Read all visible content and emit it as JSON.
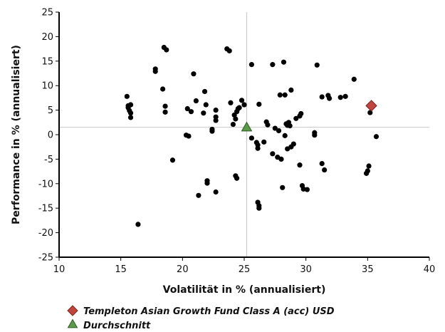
{
  "chart_data": {
    "type": "scatter",
    "xlabel": "Volatilität in % (annualisiert)",
    "ylabel": "Performance in % (annualisiert)",
    "xlim": [
      10,
      40
    ],
    "ylim": [
      -25,
      25
    ],
    "xticks": [
      10,
      15,
      20,
      25,
      30,
      35,
      40
    ],
    "yticks": [
      -25,
      -20,
      -15,
      -10,
      -5,
      0,
      5,
      10,
      15,
      20,
      25
    ],
    "grid": false,
    "legend_position": "bottom-left",
    "reference_lines": {
      "x": 25.2,
      "y": 1.5
    },
    "series": [
      {
        "name": "",
        "marker": "circle",
        "color": "#000000",
        "points": [
          [
            15.5,
            7.8
          ],
          [
            15.6,
            5.9
          ],
          [
            15.6,
            5.5
          ],
          [
            15.7,
            4.9
          ],
          [
            15.8,
            6.1
          ],
          [
            15.8,
            4.4
          ],
          [
            15.8,
            3.5
          ],
          [
            16.4,
            -18.3
          ],
          [
            17.8,
            13.4
          ],
          [
            17.8,
            12.9
          ],
          [
            18.4,
            9.3
          ],
          [
            18.5,
            17.8
          ],
          [
            18.7,
            17.3
          ],
          [
            18.6,
            5.8
          ],
          [
            18.6,
            4.6
          ],
          [
            19.2,
            -5.2
          ],
          [
            20.3,
            -0.1
          ],
          [
            20.5,
            -0.3
          ],
          [
            20.4,
            5.3
          ],
          [
            20.7,
            4.7
          ],
          [
            20.9,
            12.4
          ],
          [
            21.1,
            6.9
          ],
          [
            21.3,
            -12.4
          ],
          [
            21.7,
            4.4
          ],
          [
            21.8,
            8.8
          ],
          [
            21.9,
            6.1
          ],
          [
            22.0,
            -9.4
          ],
          [
            22.0,
            -9.9
          ],
          [
            22.4,
            1.1
          ],
          [
            22.4,
            0.7
          ],
          [
            22.7,
            5.0
          ],
          [
            22.7,
            3.6
          ],
          [
            22.7,
            2.9
          ],
          [
            22.7,
            -11.7
          ],
          [
            23.6,
            17.5
          ],
          [
            23.8,
            17.1
          ],
          [
            23.9,
            6.5
          ],
          [
            24.1,
            2.1
          ],
          [
            24.2,
            4.0
          ],
          [
            24.3,
            3.2
          ],
          [
            24.4,
            4.7
          ],
          [
            24.5,
            5.3
          ],
          [
            24.3,
            -8.4
          ],
          [
            24.4,
            -8.9
          ],
          [
            24.6,
            5.5
          ],
          [
            24.8,
            7.0
          ],
          [
            25.0,
            6.1
          ],
          [
            25.6,
            14.3
          ],
          [
            25.6,
            -0.7
          ],
          [
            26.0,
            -1.6
          ],
          [
            26.1,
            -2.1
          ],
          [
            26.1,
            -2.8
          ],
          [
            26.2,
            6.2
          ],
          [
            26.1,
            -13.8
          ],
          [
            26.2,
            -14.5
          ],
          [
            26.2,
            -15.0
          ],
          [
            26.6,
            -1.5
          ],
          [
            26.8,
            2.6
          ],
          [
            26.9,
            2.0
          ],
          [
            27.3,
            -3.9
          ],
          [
            27.3,
            14.3
          ],
          [
            27.5,
            1.3
          ],
          [
            27.7,
            -4.6
          ],
          [
            27.8,
            0.8
          ],
          [
            27.9,
            8.1
          ],
          [
            28.0,
            -5.0
          ],
          [
            28.1,
            -10.8
          ],
          [
            28.2,
            14.8
          ],
          [
            28.3,
            8.1
          ],
          [
            28.3,
            -0.2
          ],
          [
            28.4,
            2.2
          ],
          [
            28.5,
            1.9
          ],
          [
            28.5,
            -2.9
          ],
          [
            28.6,
            2.5
          ],
          [
            28.7,
            1.8
          ],
          [
            28.8,
            9.1
          ],
          [
            28.8,
            -2.5
          ],
          [
            29.0,
            -1.9
          ],
          [
            29.2,
            3.3
          ],
          [
            29.5,
            3.8
          ],
          [
            29.6,
            4.3
          ],
          [
            29.5,
            -6.2
          ],
          [
            29.7,
            -10.4
          ],
          [
            29.8,
            -11.1
          ],
          [
            30.1,
            -11.2
          ],
          [
            30.7,
            0.4
          ],
          [
            30.7,
            -0.1
          ],
          [
            30.9,
            14.2
          ],
          [
            31.3,
            7.7
          ],
          [
            31.3,
            -5.9
          ],
          [
            31.5,
            -7.2
          ],
          [
            31.8,
            8.0
          ],
          [
            31.9,
            7.4
          ],
          [
            32.8,
            7.6
          ],
          [
            33.2,
            7.8
          ],
          [
            33.9,
            11.3
          ],
          [
            34.9,
            -7.9
          ],
          [
            35.0,
            -7.4
          ],
          [
            35.1,
            -6.4
          ],
          [
            35.2,
            4.5
          ],
          [
            35.7,
            -0.4
          ]
        ]
      },
      {
        "name": "Templeton Asian Growth Fund Class A (acc) USD",
        "marker": "diamond",
        "color": "#c0453f",
        "points": [
          [
            35.3,
            5.9
          ]
        ]
      },
      {
        "name": "Durchschnitt",
        "marker": "triangle",
        "color": "#5a9a48",
        "points": [
          [
            25.2,
            1.5
          ]
        ]
      }
    ]
  }
}
